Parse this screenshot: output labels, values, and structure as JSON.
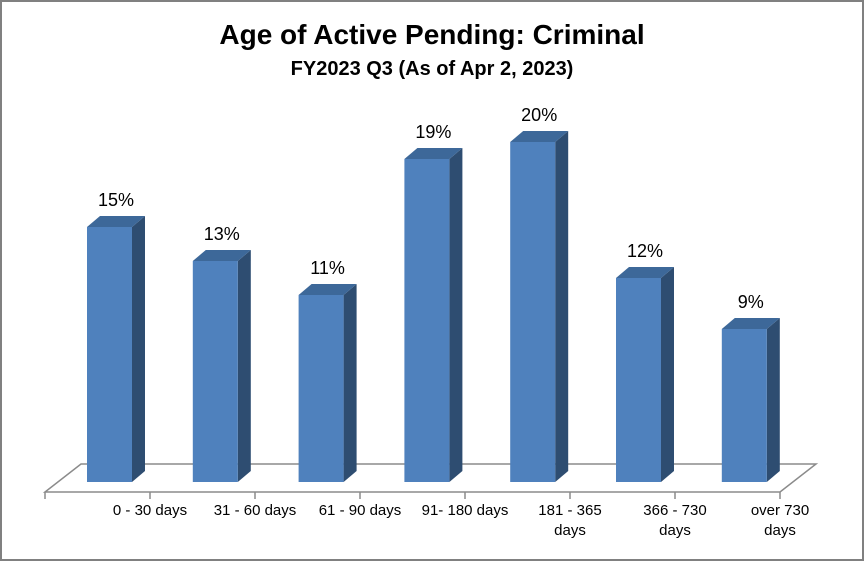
{
  "chart_data": {
    "type": "bar",
    "style": "3d-box-bars",
    "title": "Age of Active Pending: Criminal",
    "subtitle": "FY2023 Q3 (As of Apr 2, 2023)",
    "categories": [
      "0 - 30 days",
      "31 - 60 days",
      "61 - 90 days",
      "91- 180 days",
      "181 - 365 days",
      "366 - 730 days",
      "over 730 days"
    ],
    "category_label_lines": [
      [
        "0 - 30 days"
      ],
      [
        "31 - 60 days"
      ],
      [
        "61 - 90 days"
      ],
      [
        "91- 180 days"
      ],
      [
        "181 - 365",
        "days"
      ],
      [
        "366 - 730",
        "days"
      ],
      [
        "over 730",
        "days"
      ]
    ],
    "values": [
      15,
      13,
      11,
      19,
      20,
      12,
      9
    ],
    "value_labels": [
      "15%",
      "13%",
      "11%",
      "19%",
      "20%",
      "12%",
      "9%"
    ],
    "unit": "%",
    "xlabel": "",
    "ylabel": "",
    "ylim": [
      0,
      22
    ],
    "grid": false,
    "legend": "none",
    "y_axis_visible": false,
    "colors": {
      "bar_front": "#4f81bd",
      "bar_top": "#3d6899",
      "bar_side": "#2e4d71",
      "axis_line": "#8b8b8b",
      "text": "#000000",
      "frame_border": "#808080",
      "background": "#ffffff"
    }
  }
}
